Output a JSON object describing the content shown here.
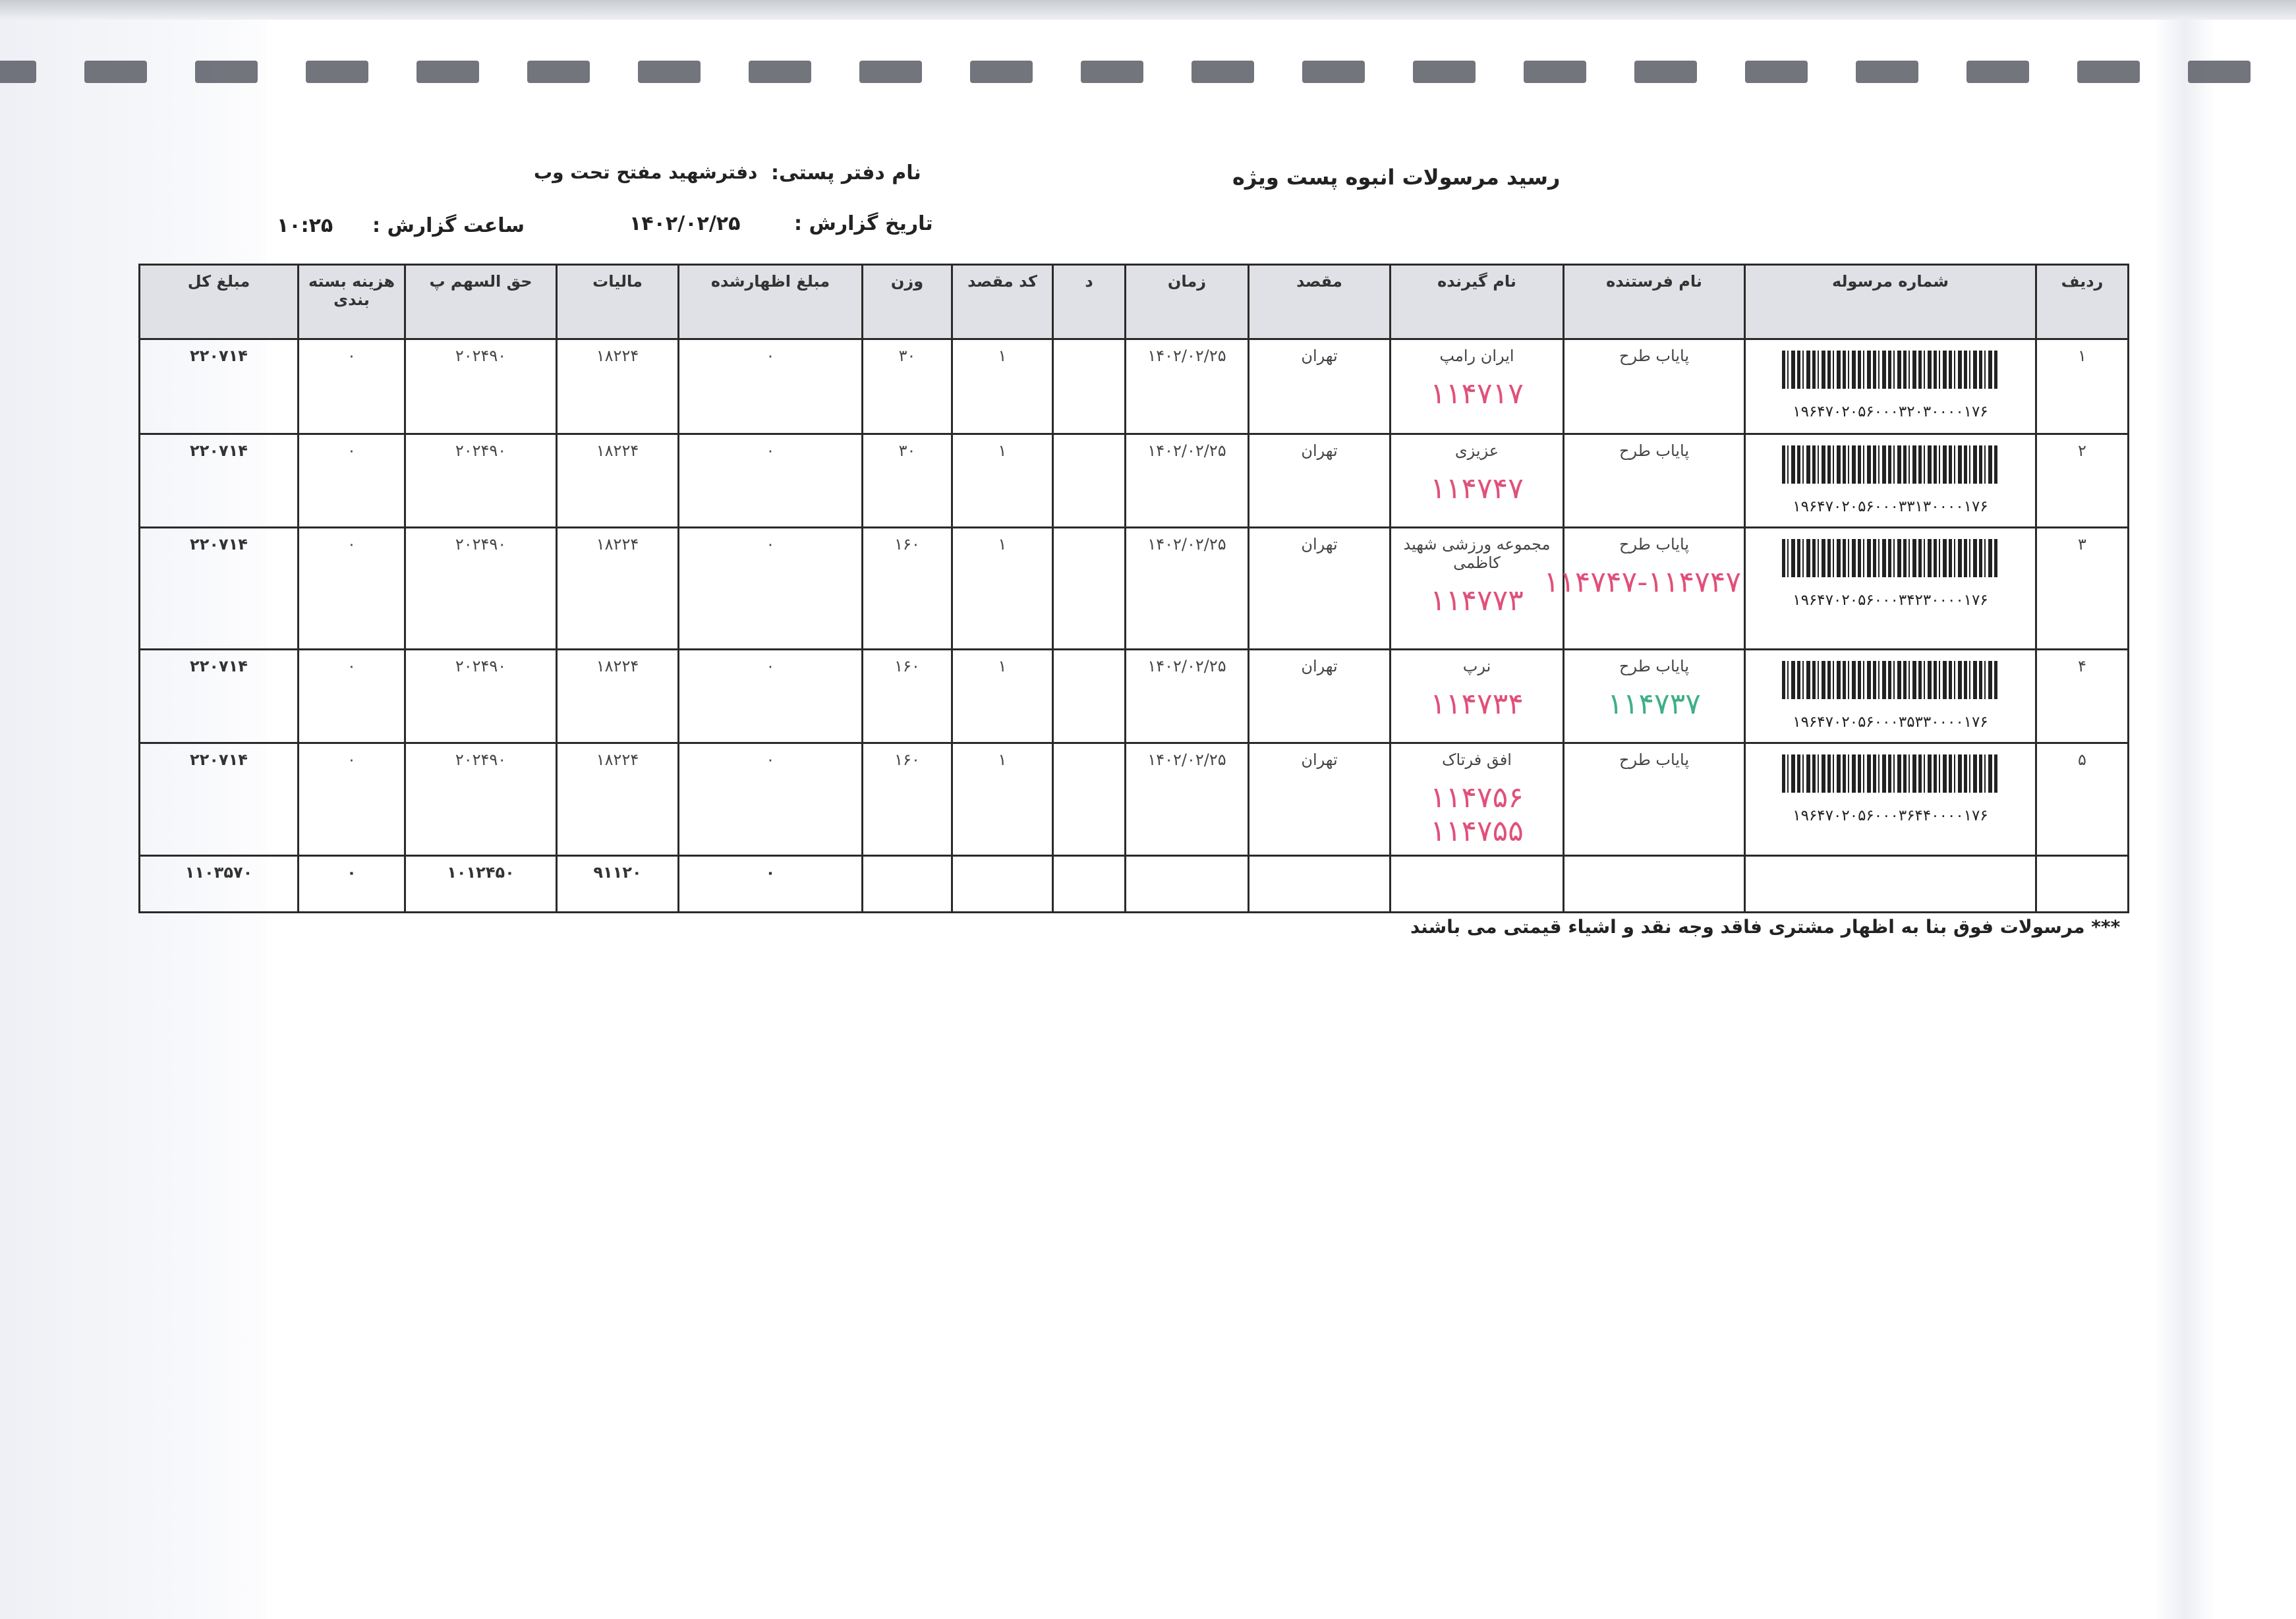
{
  "header": {
    "title": "رسید مرسولات انبوه پست ویژه",
    "office_label": "نام دفتر پستی:",
    "office_value": "دفترشهید مفتح تحت وب",
    "date_label": "تاریخ گزارش :",
    "date_value": "۱۴۰۲/۰۲/۲۵",
    "time_label": "ساعت گزارش :",
    "time_value": "۱۰:۲۵"
  },
  "table": {
    "columns": [
      "ردیف",
      "شماره مرسوله",
      "نام فرستنده",
      "نام گیرنده",
      "مقصد",
      "زمان",
      "د",
      "کد مقصد",
      "وزن",
      "مبلغ اظهارشده",
      "مالیات",
      "حق السهم پ",
      "هزینه بسته بندی",
      "مبلغ کل"
    ],
    "rows": [
      {
        "row": "۱",
        "tracking": "۱۹۶۴۷۰۲۰۵۶۰۰۰۳۲۰۳۰۰۰۰۱۷۶",
        "sender": "پایاب طرح",
        "sender_note": "",
        "receiver": "ایران رامپ",
        "receiver_note": "۱۱۴۷۱۷",
        "dest": "تهران",
        "time": "۱۴۰۲/۰۲/۲۵",
        "d": "",
        "code": "۱",
        "weight": "۳۰",
        "declared": "۰",
        "tax": "۱۸۲۲۴",
        "share": "۲۰۲۴۹۰",
        "packing": "۰",
        "total": "۲۲۰۷۱۴"
      },
      {
        "row": "۲",
        "tracking": "۱۹۶۴۷۰۲۰۵۶۰۰۰۳۳۱۳۰۰۰۰۱۷۶",
        "sender": "پایاب طرح",
        "sender_note": "",
        "receiver": "عزیزی",
        "receiver_note": "۱۱۴۷۴۷",
        "dest": "تهران",
        "time": "۱۴۰۲/۰۲/۲۵",
        "d": "",
        "code": "۱",
        "weight": "۳۰",
        "declared": "۰",
        "tax": "۱۸۲۲۴",
        "share": "۲۰۲۴۹۰",
        "packing": "۰",
        "total": "۲۲۰۷۱۴"
      },
      {
        "row": "۳",
        "tracking": "۱۹۶۴۷۰۲۰۵۶۰۰۰۳۴۲۳۰۰۰۰۱۷۶",
        "sender": "پایاب طرح",
        "sender_note": "۱۱۴۷۴۷-۱۱۴۷۴۷",
        "receiver": "مجموعه ورزشی شهید کاظمی",
        "receiver_note": "۱۱۴۷۷۳",
        "dest": "تهران",
        "time": "۱۴۰۲/۰۲/۲۵",
        "d": "",
        "code": "۱",
        "weight": "۱۶۰",
        "declared": "۰",
        "tax": "۱۸۲۲۴",
        "share": "۲۰۲۴۹۰",
        "packing": "۰",
        "total": "۲۲۰۷۱۴"
      },
      {
        "row": "۴",
        "tracking": "۱۹۶۴۷۰۲۰۵۶۰۰۰۳۵۳۳۰۰۰۰۱۷۶",
        "sender": "پایاب طرح",
        "sender_note": "۱۱۴۷۳۷",
        "receiver": "نرپ",
        "receiver_note": "۱۱۴۷۳۴",
        "dest": "تهران",
        "time": "۱۴۰۲/۰۲/۲۵",
        "d": "",
        "code": "۱",
        "weight": "۱۶۰",
        "declared": "۰",
        "tax": "۱۸۲۲۴",
        "share": "۲۰۲۴۹۰",
        "packing": "۰",
        "total": "۲۲۰۷۱۴"
      },
      {
        "row": "۵",
        "tracking": "۱۹۶۴۷۰۲۰۵۶۰۰۰۳۶۴۴۰۰۰۰۱۷۶",
        "sender": "پایاب طرح",
        "sender_note": "",
        "receiver": "افق فرتاک",
        "receiver_note": "۱۱۴۷۵۶ ۱۱۴۷۵۵",
        "dest": "تهران",
        "time": "۱۴۰۲/۰۲/۲۵",
        "d": "",
        "code": "۱",
        "weight": "۱۶۰",
        "declared": "۰",
        "tax": "۱۸۲۲۴",
        "share": "۲۰۲۴۹۰",
        "packing": "۰",
        "total": "۲۲۰۷۱۴"
      }
    ],
    "totals": {
      "declared": "۰",
      "tax": "۹۱۱۲۰",
      "share": "۱۰۱۲۴۵۰",
      "packing": "۰",
      "total": "۱۱۰۳۵۷۰"
    }
  },
  "footer_note": "*** مرسولات فوق  بنا به اظهار مشتری فاقد وجه نقد و اشیاء قیمتی می باشند",
  "colors": {
    "header_bg": "#dfe1e6",
    "handwriting_red": "#e0507a",
    "handwriting_green": "#3fb085"
  }
}
